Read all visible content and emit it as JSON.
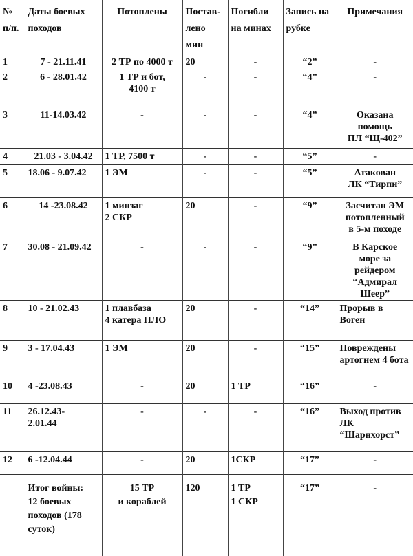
{
  "headers": [
    "№\nп/п.",
    "Даты боевых\nпоходов",
    "Потоплены",
    "Постав-\nлено мин",
    "Погибли\nна минах",
    "Запись на\nрубке",
    "Примечания"
  ],
  "rows": [
    [
      "1",
      "7 - 21.11.41",
      "2 ТР по 4000 т",
      "20",
      "-",
      "“2”",
      "-"
    ],
    [
      "2",
      "6 - 28.01.42",
      "1 ТР  и бот,\n        4100 т",
      "-",
      "-",
      "“4”",
      "-"
    ],
    [
      "3",
      "11-14.03.42",
      "-",
      "-",
      "-",
      "“4”",
      "Оказана\nпомощь\nПЛ “Щ-402”"
    ],
    [
      "4",
      "21.03 - 3.04.42",
      "1 ТР,  7500 т",
      "-",
      "-",
      "“5”",
      "-"
    ],
    [
      "5",
      "18.06 - 9.07.42",
      "1 ЭМ",
      "-",
      "-",
      "“5”",
      "Атакован\nЛК “Тирпи”"
    ],
    [
      "6",
      "14 -23.08.42",
      "1 минзаг\n  2 СКР",
      "20",
      "-",
      "“9”",
      "Засчитан ЭМ\nпотопленный\nв 5-м походе"
    ],
    [
      "7",
      "30.08 - 21.09.42",
      "-",
      "-",
      "-",
      "“9”",
      "В Карское\nморе за\n   рейдером\n“Адмирал Шеер”"
    ],
    [
      "8",
      "10 - 21.02.43",
      "1 плавбаза\n4 катера ПЛО",
      "20",
      "-",
      "“14”",
      "Прорыв в Воген"
    ],
    [
      "9",
      "3 - 17.04.43",
      "1 ЭМ",
      "20",
      "-",
      "“15”",
      "Повреждены\nартогнем 4 бота"
    ],
    [
      "10",
      "4 -23.08.43",
      "-",
      "20",
      "1 ТР",
      "“16”",
      "-"
    ],
    [
      "11",
      "26.12.43-\n2.01.44",
      "-",
      "-",
      "-",
      "“16”",
      "Выход против\n ЛК\n“Шарнхорст”"
    ],
    [
      "12",
      "6 -12.04.44",
      "-",
      "20",
      "1СКР",
      "“17”",
      "-"
    ]
  ],
  "total": [
    "",
    "Итог войны:\n12 боевых\nпоходов (178\nсуток)",
    "15 ТР\nи кораблей",
    "120",
    "1 ТР\n1 СКР",
    "“17”",
    "-"
  ]
}
